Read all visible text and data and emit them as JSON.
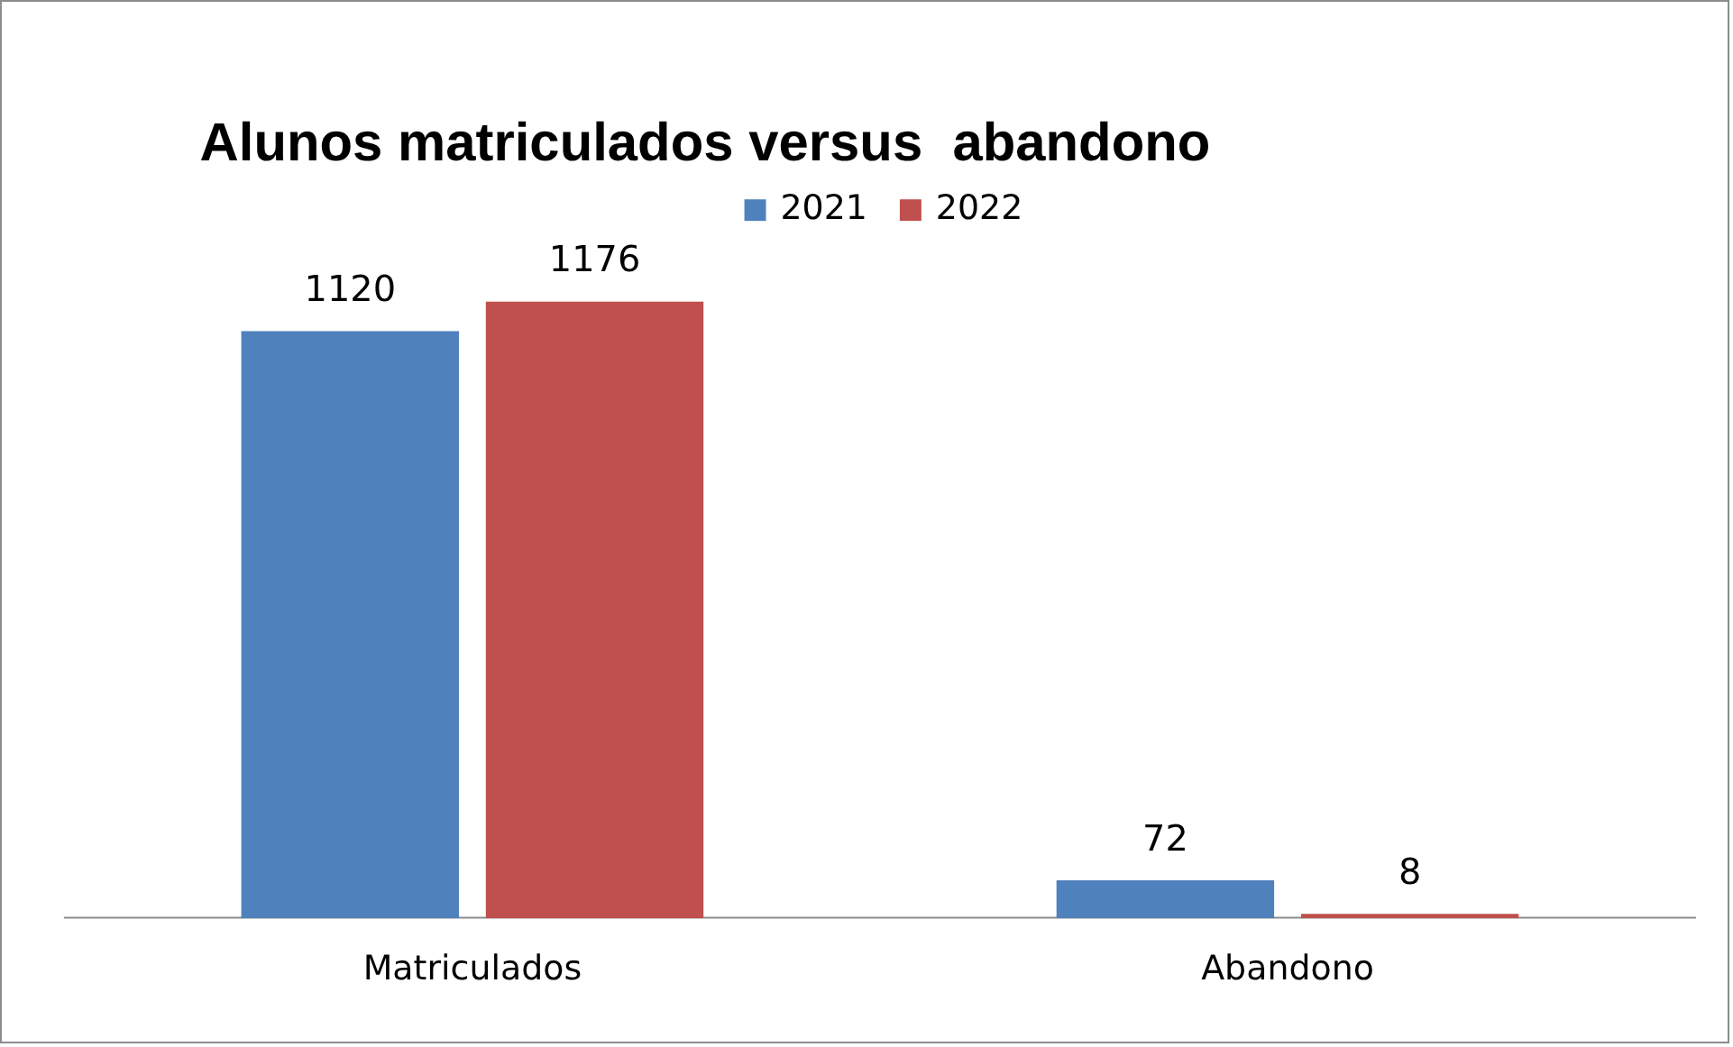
{
  "chart_data": {
    "type": "bar",
    "title": "Alunos matriculados versus  abandono",
    "categories": [
      "Matriculados",
      "Abandono"
    ],
    "series": [
      {
        "name": "2021",
        "color": "#4f81bd",
        "values": [
          1120,
          72
        ]
      },
      {
        "name": "2022",
        "color": "#c0504d",
        "values": [
          1176,
          8
        ]
      }
    ],
    "data_labels": true,
    "legend": "top",
    "grid": false
  }
}
